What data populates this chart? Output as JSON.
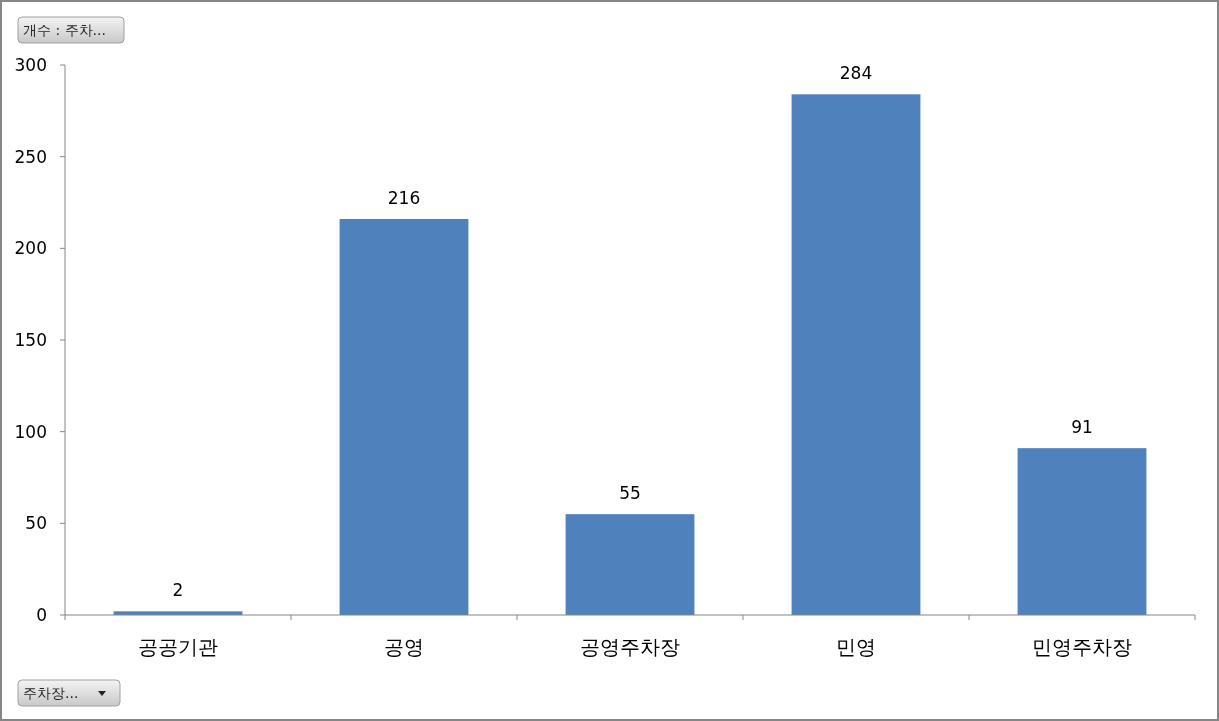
{
  "chart_data": {
    "type": "bar",
    "categories": [
      "공공기관",
      "공영",
      "공영주차장",
      "민영",
      "민영주차장"
    ],
    "values": [
      2,
      216,
      55,
      284,
      91
    ],
    "color": "#4f81bd",
    "ylim": [
      0,
      300
    ],
    "yticks": [
      0,
      50,
      100,
      150,
      200,
      250,
      300
    ],
    "data_labels": true,
    "grid": false,
    "annotations": [
      "개수 : 주차...",
      "주차장..."
    ]
  }
}
